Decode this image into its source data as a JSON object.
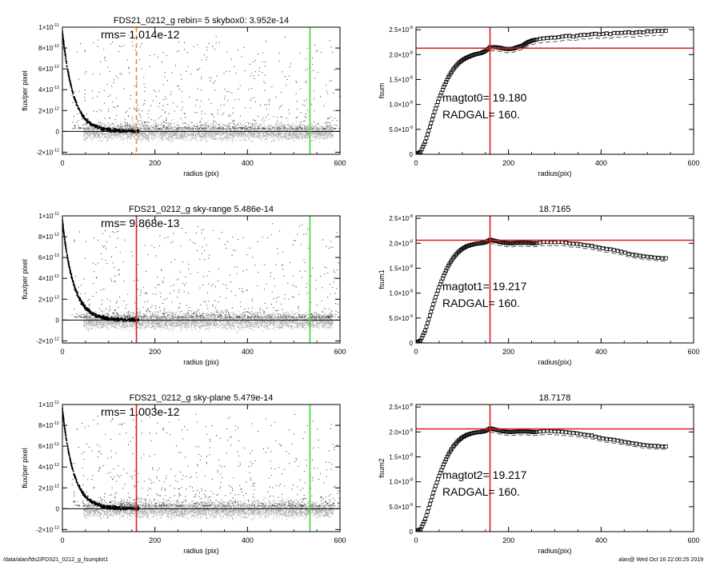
{
  "footer": {
    "path": "/data/alan/fds2/FDS21_0212_g_fsumplot1",
    "stamp": "alan@  Wed Oct 16 22:00:25 2019"
  },
  "colors": {
    "dashed_orange": "#f08c1e",
    "red": "#e11b1b",
    "green": "#33dd33",
    "gray_points": "#a8a8a8",
    "profile": "#000000"
  },
  "chart_data": [
    {
      "type": "scatter",
      "title": "FDS21_0212_g rebin= 5    skybox0:  3.952e-14",
      "annotation": "rms= 1.014e-12",
      "xlabel": "radius (pix)",
      "ylabel": "flux/per pixel",
      "xlim": [
        0,
        600
      ],
      "ylim": [
        -2.2e-12,
        1e-11
      ],
      "xticks": [
        "0",
        "200",
        "400",
        "600"
      ],
      "yticks": [
        {
          "value": -2e-12,
          "m": "-2×10",
          "e": "-12"
        },
        {
          "value": 0,
          "m": "0",
          "e": ""
        },
        {
          "value": 2e-12,
          "m": "2×10",
          "e": "-12"
        },
        {
          "value": 4e-12,
          "m": "4×10",
          "e": "-12"
        },
        {
          "value": 6e-12,
          "m": "6×10",
          "e": "-12"
        },
        {
          "value": 8e-12,
          "m": "8×10",
          "e": "-12"
        },
        {
          "value": 1e-11,
          "m": "1×10",
          "e": "-11"
        }
      ],
      "vlines": [
        {
          "x": 160,
          "color": "orange",
          "style": "dashed"
        },
        {
          "x": 535,
          "color": "green",
          "style": "solid"
        }
      ],
      "profile": {
        "amplitude": 9.5e-12,
        "scale_pix": 24
      },
      "grid": false,
      "legend": "none"
    },
    {
      "type": "line",
      "title": "",
      "annotations": [
        "magtot0=  19.180",
        "RADGAL=    160."
      ],
      "xlabel": "radius(pix)",
      "ylabel": "fsum",
      "xlim": [
        0,
        600
      ],
      "ylim": [
        0,
        2.55e-08
      ],
      "xticks": [
        "0",
        "200",
        "400",
        "600"
      ],
      "yticks": [
        {
          "value": 0,
          "m": "0",
          "e": ""
        },
        {
          "value": 5e-09,
          "m": "5.0×10",
          "e": "-9"
        },
        {
          "value": 1e-08,
          "m": "1.0×10",
          "e": "-8"
        },
        {
          "value": 1.5e-08,
          "m": "1.5×10",
          "e": "-8"
        },
        {
          "value": 2e-08,
          "m": "2.0×10",
          "e": "-8"
        },
        {
          "value": 2.5e-08,
          "m": "2.5×10",
          "e": "-8"
        }
      ],
      "vline": {
        "x": 160,
        "color": "red"
      },
      "hline": {
        "y": 2.13e-08,
        "color": "red"
      },
      "series": [
        {
          "x": [
            0,
            10,
            20,
            30,
            40,
            50,
            60,
            70,
            80,
            90,
            100,
            110,
            120,
            130,
            140,
            150,
            160,
            170,
            180,
            190,
            200,
            210,
            220,
            230,
            240,
            250,
            260,
            270,
            280,
            290,
            300,
            310,
            320,
            330,
            340,
            350,
            360,
            370,
            380,
            390,
            400,
            410,
            420,
            430,
            440,
            450,
            460,
            470,
            480,
            490,
            500,
            510,
            520,
            530,
            540
          ],
          "values": [
            0,
            5e-10,
            2.5e-09,
            5.5e-09,
            8.5e-09,
            1.12e-08,
            1.35e-08,
            1.55e-08,
            1.7e-08,
            1.81e-08,
            1.89e-08,
            1.94e-08,
            1.98e-08,
            2.01e-08,
            2.03e-08,
            2.07e-08,
            2.15e-08,
            2.15e-08,
            2.14e-08,
            2.12e-08,
            2.11e-08,
            2.12e-08,
            2.15e-08,
            2.18e-08,
            2.24e-08,
            2.28e-08,
            2.3e-08,
            2.32e-08,
            2.33e-08,
            2.34e-08,
            2.34e-08,
            2.35e-08,
            2.37e-08,
            2.38e-08,
            2.36e-08,
            2.38e-08,
            2.4e-08,
            2.39e-08,
            2.41e-08,
            2.42e-08,
            2.4e-08,
            2.43e-08,
            2.41e-08,
            2.44e-08,
            2.43e-08,
            2.44e-08,
            2.45e-08,
            2.43e-08,
            2.46e-08,
            2.44e-08,
            2.47e-08,
            2.46e-08,
            2.48e-08,
            2.47e-08,
            2.48e-08
          ]
        }
      ],
      "grid": false,
      "legend": "none"
    },
    {
      "type": "scatter",
      "title": "FDS21_0212_g sky-range  5.486e-14",
      "annotation": "rms= 9.868e-13",
      "xlabel": "radius (pix)",
      "ylabel": "flux/per pixel",
      "xlim": [
        0,
        600
      ],
      "ylim": [
        -2.2e-12,
        1e-11
      ],
      "xticks": [
        "0",
        "200",
        "400",
        "600"
      ],
      "yticks": [
        {
          "value": -2e-12,
          "m": "-2×10",
          "e": "-12"
        },
        {
          "value": 0,
          "m": "0",
          "e": ""
        },
        {
          "value": 2e-12,
          "m": "2×10",
          "e": "-12"
        },
        {
          "value": 4e-12,
          "m": "4×10",
          "e": "-12"
        },
        {
          "value": 6e-12,
          "m": "6×10",
          "e": "-12"
        },
        {
          "value": 8e-12,
          "m": "8×10",
          "e": "-12"
        },
        {
          "value": 1e-11,
          "m": "1×10",
          "e": "-11"
        }
      ],
      "vlines": [
        {
          "x": 160,
          "color": "red",
          "style": "solid"
        },
        {
          "x": 535,
          "color": "green",
          "style": "solid"
        }
      ],
      "profile": {
        "amplitude": 9.5e-12,
        "scale_pix": 24
      },
      "grid": false,
      "legend": "none"
    },
    {
      "type": "line",
      "title": "18.7165",
      "annotations": [
        "magtot1=  19.217",
        "RADGAL=    160."
      ],
      "xlabel": "radius(pix)",
      "ylabel": "fsum1",
      "xlim": [
        0,
        600
      ],
      "ylim": [
        0,
        2.55e-08
      ],
      "xticks": [
        "0",
        "200",
        "400",
        "600"
      ],
      "yticks": [
        {
          "value": 0,
          "m": "0",
          "e": ""
        },
        {
          "value": 5e-09,
          "m": "5.0×10",
          "e": "-9"
        },
        {
          "value": 1e-08,
          "m": "1.0×10",
          "e": "-8"
        },
        {
          "value": 1.5e-08,
          "m": "1.5×10",
          "e": "-8"
        },
        {
          "value": 2e-08,
          "m": "2.0×10",
          "e": "-8"
        },
        {
          "value": 2.5e-08,
          "m": "2.5×10",
          "e": "-8"
        }
      ],
      "vline": {
        "x": 160,
        "color": "red"
      },
      "hline": {
        "y": 2.06e-08,
        "color": "red"
      },
      "series": [
        {
          "x": [
            0,
            10,
            20,
            30,
            40,
            50,
            60,
            70,
            80,
            90,
            100,
            110,
            120,
            130,
            140,
            150,
            160,
            170,
            180,
            190,
            200,
            210,
            220,
            230,
            240,
            250,
            260,
            270,
            280,
            290,
            300,
            310,
            320,
            330,
            340,
            350,
            360,
            370,
            380,
            390,
            400,
            410,
            420,
            430,
            440,
            450,
            460,
            470,
            480,
            490,
            500,
            510,
            520,
            530,
            540
          ],
          "values": [
            0,
            5e-10,
            2.5e-09,
            5.5e-09,
            8.5e-09,
            1.12e-08,
            1.35e-08,
            1.55e-08,
            1.7e-08,
            1.81e-08,
            1.89e-08,
            1.94e-08,
            1.97e-08,
            1.99e-08,
            2e-08,
            2.02e-08,
            2.07e-08,
            2.05e-08,
            2.03e-08,
            2.01e-08,
            2e-08,
            2e-08,
            2.01e-08,
            2.01e-08,
            2.01e-08,
            2e-08,
            2e-08,
            2.02e-08,
            2.03e-08,
            2.02e-08,
            2.02e-08,
            2.03e-08,
            2.02e-08,
            2e-08,
            1.99e-08,
            1.99e-08,
            1.97e-08,
            1.96e-08,
            1.95e-08,
            1.92e-08,
            1.91e-08,
            1.89e-08,
            1.88e-08,
            1.86e-08,
            1.84e-08,
            1.82e-08,
            1.79e-08,
            1.77e-08,
            1.76e-08,
            1.74e-08,
            1.73e-08,
            1.72e-08,
            1.71e-08,
            1.7e-08,
            1.7e-08
          ]
        }
      ],
      "grid": false,
      "legend": "none"
    },
    {
      "type": "scatter",
      "title": "FDS21_0212_g sky-plane  5.479e-14",
      "annotation": "rms= 1.003e-12",
      "xlabel": "radius (pix)",
      "ylabel": "flux/per pixel",
      "xlim": [
        0,
        600
      ],
      "ylim": [
        -2.2e-12,
        1e-11
      ],
      "xticks": [
        "0",
        "200",
        "400",
        "600"
      ],
      "yticks": [
        {
          "value": -2e-12,
          "m": "-2×10",
          "e": "-12"
        },
        {
          "value": 0,
          "m": "0",
          "e": ""
        },
        {
          "value": 2e-12,
          "m": "2×10",
          "e": "-12"
        },
        {
          "value": 4e-12,
          "m": "4×10",
          "e": "-12"
        },
        {
          "value": 6e-12,
          "m": "6×10",
          "e": "-12"
        },
        {
          "value": 8e-12,
          "m": "8×10",
          "e": "-12"
        },
        {
          "value": 1e-11,
          "m": "1×10",
          "e": "-11"
        }
      ],
      "vlines": [
        {
          "x": 160,
          "color": "red",
          "style": "solid"
        },
        {
          "x": 535,
          "color": "green",
          "style": "solid"
        }
      ],
      "profile": {
        "amplitude": 9.5e-12,
        "scale_pix": 24
      },
      "grid": false,
      "legend": "none"
    },
    {
      "type": "line",
      "title": "18.7178",
      "annotations": [
        "magtot2=  19.217",
        "RADGAL=    160."
      ],
      "xlabel": "radius(pix)",
      "ylabel": "fsum2",
      "xlim": [
        0,
        600
      ],
      "ylim": [
        0,
        2.55e-08
      ],
      "xticks": [
        "0",
        "200",
        "400",
        "600"
      ],
      "yticks": [
        {
          "value": 0,
          "m": "0",
          "e": ""
        },
        {
          "value": 5e-09,
          "m": "5.0×10",
          "e": "-9"
        },
        {
          "value": 1e-08,
          "m": "1.0×10",
          "e": "-8"
        },
        {
          "value": 1.5e-08,
          "m": "1.5×10",
          "e": "-8"
        },
        {
          "value": 2e-08,
          "m": "2.0×10",
          "e": "-8"
        },
        {
          "value": 2.5e-08,
          "m": "2.5×10",
          "e": "-8"
        }
      ],
      "vline": {
        "x": 160,
        "color": "red"
      },
      "hline": {
        "y": 2.06e-08,
        "color": "red"
      },
      "series": [
        {
          "x": [
            0,
            10,
            20,
            30,
            40,
            50,
            60,
            70,
            80,
            90,
            100,
            110,
            120,
            130,
            140,
            150,
            160,
            170,
            180,
            190,
            200,
            210,
            220,
            230,
            240,
            250,
            260,
            270,
            280,
            290,
            300,
            310,
            320,
            330,
            340,
            350,
            360,
            370,
            380,
            390,
            400,
            410,
            420,
            430,
            440,
            450,
            460,
            470,
            480,
            490,
            500,
            510,
            520,
            530,
            540
          ],
          "values": [
            0,
            5e-10,
            2.5e-09,
            5.5e-09,
            8.5e-09,
            1.12e-08,
            1.35e-08,
            1.55e-08,
            1.7e-08,
            1.81e-08,
            1.89e-08,
            1.94e-08,
            1.97e-08,
            1.99e-08,
            2e-08,
            2.02e-08,
            2.07e-08,
            2.05e-08,
            2.03e-08,
            2.01e-08,
            2e-08,
            2e-08,
            2.01e-08,
            2.01e-08,
            2.01e-08,
            2e-08,
            2e-08,
            2.01e-08,
            2.02e-08,
            2.02e-08,
            2.01e-08,
            2.01e-08,
            2e-08,
            1.99e-08,
            1.98e-08,
            1.97e-08,
            1.95e-08,
            1.94e-08,
            1.93e-08,
            1.9e-08,
            1.88e-08,
            1.86e-08,
            1.85e-08,
            1.84e-08,
            1.82e-08,
            1.8e-08,
            1.79e-08,
            1.77e-08,
            1.76e-08,
            1.74e-08,
            1.73e-08,
            1.72e-08,
            1.72e-08,
            1.71e-08,
            1.71e-08
          ]
        }
      ],
      "grid": false,
      "legend": "none"
    }
  ]
}
